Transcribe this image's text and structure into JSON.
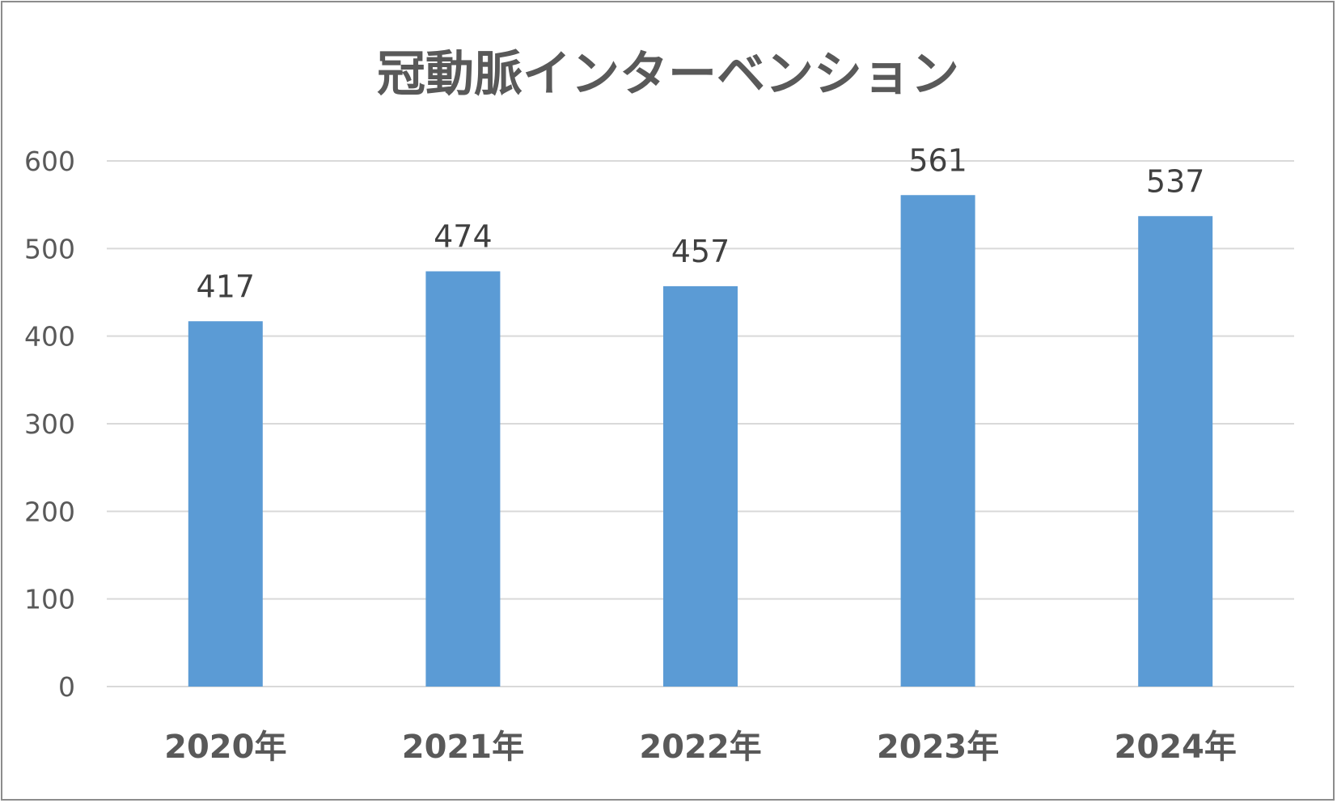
{
  "chart_data": {
    "type": "bar",
    "title": "冠動脈インターベンション",
    "categories": [
      "2020年",
      "2021年",
      "2022年",
      "2023年",
      "2024年"
    ],
    "values": [
      417,
      474,
      457,
      561,
      537
    ],
    "ylim": [
      0,
      600
    ],
    "yticks": [
      0,
      100,
      200,
      300,
      400,
      500,
      600
    ],
    "grid": true,
    "data_labels": true,
    "bar_color": "#5b9bd5",
    "gridline_color": "#d9d9d9"
  }
}
